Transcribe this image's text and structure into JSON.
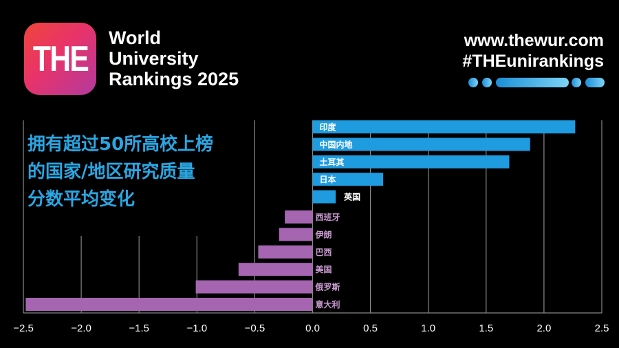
{
  "header": {
    "logo_text": "THE",
    "brand_lines": [
      "World",
      "University",
      "Rankings 2025"
    ],
    "website": "www.thewur.com",
    "hashtag": "#THEunirankings"
  },
  "colors": {
    "positive": "#1f9be0",
    "negative": "#a565b0",
    "title": "#2aa6e2"
  },
  "chart_data": {
    "type": "bar",
    "orientation": "horizontal",
    "title_lines": [
      "拥有超过50所高校上榜",
      "的国家/地区研究质量",
      "分数平均变化"
    ],
    "categories": [
      "印度",
      "中国内地",
      "土耳其",
      "日本",
      "英国",
      "西班牙",
      "伊朗",
      "巴西",
      "美国",
      "俄罗斯",
      "意大利"
    ],
    "values": [
      2.27,
      1.88,
      1.7,
      0.61,
      0.2,
      -0.24,
      -0.29,
      -0.47,
      -0.64,
      -1.01,
      -2.48
    ],
    "xlim": [
      -2.5,
      2.5
    ],
    "xticks": [
      "-2.5",
      "-2.0",
      "-1.5",
      "-1.0",
      "-0.5",
      "0.0",
      "0.5",
      "1.0",
      "1.5",
      "2.0",
      "2.5"
    ],
    "grid": "vertical",
    "xlabel": "",
    "ylabel": ""
  }
}
